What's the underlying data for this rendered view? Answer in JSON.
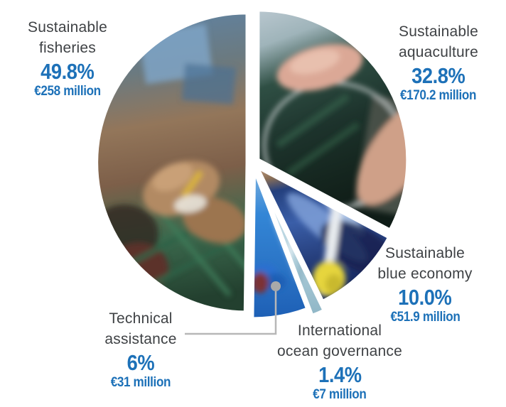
{
  "chart_data": {
    "type": "pie",
    "title": "",
    "unit": "EUR million",
    "legend_position": "around-pie",
    "slices_clockwise_from_top": true,
    "slices": [
      {
        "label": "Sustainable\naquaculture",
        "percent": "32.8%",
        "value": 32.8,
        "amount": "€170.2 million",
        "amount_meur": 170.2,
        "photo": "hand-over-aquaculture-net-bag"
      },
      {
        "label": "Sustainable\nblue economy",
        "percent": "10.0%",
        "value": 10.0,
        "amount": "€51.9 million",
        "amount_meur": 51.9,
        "photo": "blue-wrapped-fish-yellow-glove"
      },
      {
        "label": "International\nocean governance",
        "percent": "1.4%",
        "value": 1.4,
        "amount": "€7 million",
        "amount_meur": 7,
        "photo": "fish-on-ice-sliver"
      },
      {
        "label": "Technical\nassistance",
        "percent": "6%",
        "value": 6.0,
        "amount": "€31 million",
        "amount_meur": 31,
        "photo": "factory-worker-blue-overalls"
      },
      {
        "label": "Sustainable\nfisheries",
        "percent": "49.8%",
        "value": 49.8,
        "amount": "€258 million",
        "amount_meur": 258,
        "photo": "hands-mending-green-fishing-net"
      }
    ],
    "colors": {
      "accent_blue": "#1d71b8",
      "label_gray": "#3f4245",
      "leader_line_gray": "#b7b7b7",
      "background": "#ffffff"
    }
  }
}
